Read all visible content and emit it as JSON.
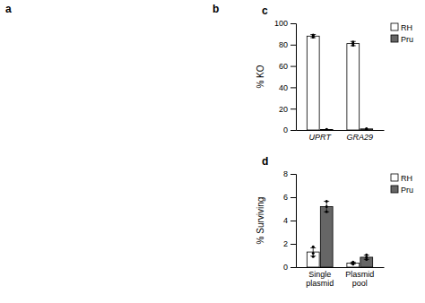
{
  "chart_data": [
    {
      "type": "bar",
      "title": "c",
      "annotations": [
        "a",
        "b"
      ],
      "y_label": "% KO",
      "categories": [
        "UPRT",
        "GRA29"
      ],
      "series": [
        {
          "name": "RH",
          "color": "white",
          "values": [
            88,
            81
          ],
          "errors": [
            1.5,
            2.0
          ],
          "dot_values": [
            [
              87.0,
              88.2,
              89.0
            ],
            [
              79.5,
              81.0,
              82.5
            ]
          ]
        },
        {
          "name": "Pru",
          "color": "#666666",
          "values": [
            0.5,
            1.0
          ],
          "dot_values": [
            [
              0.3,
              0.5,
              0.7
            ],
            [
              0.7,
              1.0,
              1.3
            ]
          ]
        }
      ],
      "ylim": [
        0,
        100
      ],
      "yticks": [
        0,
        20,
        40,
        60,
        80,
        100
      ],
      "legend": "upper right",
      "grid": false
    },
    {
      "type": "bar",
      "title": "d",
      "y_label": "% Surviving",
      "categories": [
        "Single plasmid",
        "Plasmid pool"
      ],
      "series": [
        {
          "name": "RH",
          "color": "white",
          "values": [
            1.3,
            0.35
          ],
          "errors": [
            0.35,
            0.08
          ],
          "dot_values": [
            [
              0.9,
              1.2,
              1.75
            ],
            [
              0.25,
              0.33,
              0.45
            ]
          ]
        },
        {
          "name": "Pru",
          "color": "#666666",
          "values": [
            5.2,
            0.85
          ],
          "errors": [
            0.45,
            0.18
          ],
          "dot_values": [
            [
              4.75,
              5.2,
              5.65
            ],
            [
              0.65,
              0.85,
              1.05
            ]
          ]
        }
      ],
      "ylim": [
        0,
        8
      ],
      "yticks": [
        0,
        2,
        4,
        6,
        8
      ],
      "legend": "upper right",
      "grid": false
    }
  ]
}
